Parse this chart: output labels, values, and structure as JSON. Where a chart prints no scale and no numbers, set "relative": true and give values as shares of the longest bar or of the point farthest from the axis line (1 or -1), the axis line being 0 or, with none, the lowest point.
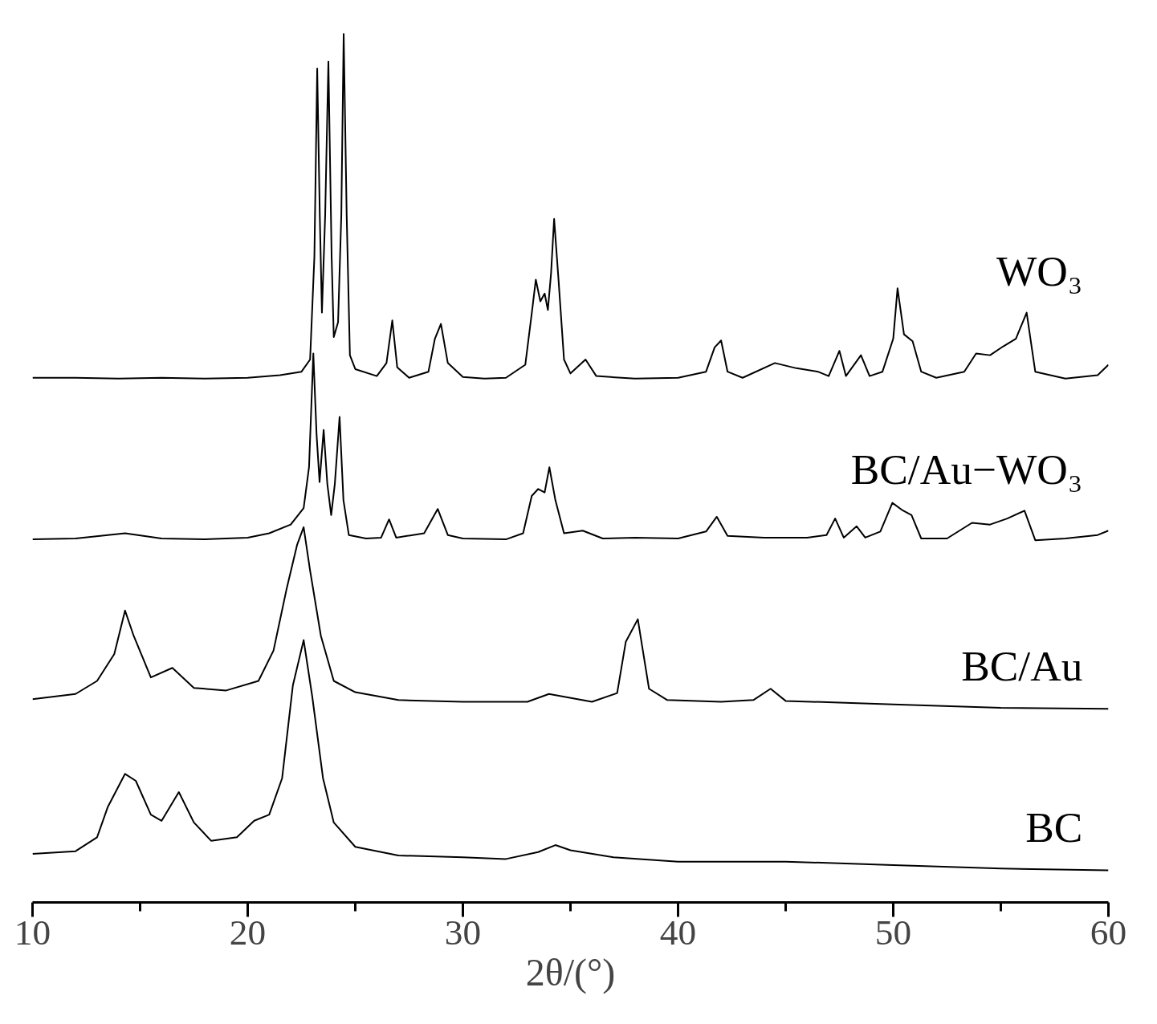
{
  "chart_data": {
    "type": "line",
    "relative": true,
    "xlabel": "2θ/(°)",
    "xlim": [
      10,
      60
    ],
    "xticks": [
      10,
      {
        "value": 15,
        "label": null
      },
      20,
      {
        "value": 25,
        "label": null
      },
      30,
      {
        "value": 35,
        "label": null
      },
      40,
      {
        "value": 45,
        "label": null
      },
      50,
      {
        "value": 55,
        "label": null
      },
      60
    ],
    "series": [
      {
        "name": "WO₃",
        "color": "#000000",
        "x": [
          10,
          12,
          14,
          16,
          18,
          20,
          21.5,
          22.5,
          22.9,
          23.1,
          23.23,
          23.35,
          23.45,
          23.6,
          23.75,
          23.9,
          24.0,
          24.2,
          24.35,
          24.46,
          24.6,
          24.75,
          25,
          26,
          26.45,
          26.72,
          26.95,
          27.5,
          28.4,
          28.7,
          28.98,
          29.3,
          30,
          31,
          32,
          32.9,
          33.2,
          33.39,
          33.6,
          33.8,
          33.95,
          34.1,
          34.24,
          34.45,
          34.7,
          35,
          35.7,
          36.2,
          38,
          40,
          41.3,
          41.7,
          42.0,
          42.3,
          43,
          44.5,
          45.5,
          46.5,
          47,
          47.5,
          47.8,
          48.5,
          48.9,
          49.5,
          50,
          50.2,
          50.5,
          50.9,
          51.3,
          52,
          53.3,
          53.85,
          54.5,
          55.1,
          55.7,
          56.2,
          56.6,
          58,
          59.5,
          60
        ],
        "values": [
          0.604,
          0.604,
          0.603,
          0.604,
          0.603,
          0.604,
          0.607,
          0.611,
          0.625,
          0.744,
          0.96,
          0.791,
          0.679,
          0.791,
          0.968,
          0.744,
          0.651,
          0.668,
          0.791,
          1,
          0.791,
          0.63,
          0.614,
          0.606,
          0.621,
          0.67,
          0.616,
          0.604,
          0.611,
          0.649,
          0.666,
          0.621,
          0.605,
          0.603,
          0.604,
          0.619,
          0.678,
          0.717,
          0.692,
          0.701,
          0.682,
          0.725,
          0.787,
          0.715,
          0.625,
          0.609,
          0.625,
          0.606,
          0.603,
          0.604,
          0.611,
          0.639,
          0.647,
          0.611,
          0.604,
          0.621,
          0.615,
          0.611,
          0.606,
          0.635,
          0.606,
          0.63,
          0.606,
          0.611,
          0.649,
          0.707,
          0.654,
          0.646,
          0.611,
          0.604,
          0.611,
          0.632,
          0.63,
          0.64,
          0.649,
          0.679,
          0.611,
          0.603,
          0.607,
          0.619
        ]
      },
      {
        "name": "BC/Au−WO₃",
        "color": "#000000",
        "x": [
          10,
          12,
          14.3,
          16,
          18,
          20,
          21,
          22,
          22.6,
          22.85,
          23.05,
          23.2,
          23.34,
          23.53,
          23.7,
          23.88,
          24.05,
          24.27,
          24.45,
          24.7,
          25.5,
          26.2,
          26.57,
          26.9,
          28.2,
          28.83,
          29.3,
          30,
          32,
          32.8,
          33.2,
          33.5,
          33.8,
          34.02,
          34.3,
          34.7,
          35.57,
          36.5,
          38,
          40,
          41.3,
          41.8,
          42.3,
          44,
          46,
          46.9,
          47.3,
          47.7,
          48.3,
          48.7,
          49.4,
          49.96,
          50.4,
          50.85,
          51.3,
          52.5,
          53.66,
          54.5,
          55.3,
          56.1,
          56.6,
          58,
          59.5,
          60
        ],
        "values": [
          0.418,
          0.419,
          0.425,
          0.419,
          0.418,
          0.42,
          0.425,
          0.435,
          0.454,
          0.501,
          0.632,
          0.539,
          0.484,
          0.544,
          0.482,
          0.446,
          0.482,
          0.559,
          0.463,
          0.423,
          0.419,
          0.42,
          0.441,
          0.42,
          0.425,
          0.453,
          0.423,
          0.419,
          0.418,
          0.425,
          0.468,
          0.476,
          0.472,
          0.501,
          0.463,
          0.425,
          0.428,
          0.419,
          0.42,
          0.419,
          0.427,
          0.444,
          0.422,
          0.42,
          0.42,
          0.423,
          0.442,
          0.42,
          0.433,
          0.42,
          0.427,
          0.46,
          0.452,
          0.446,
          0.419,
          0.419,
          0.437,
          0.435,
          0.442,
          0.451,
          0.417,
          0.419,
          0.423,
          0.428
        ]
      },
      {
        "name": "BC/Au",
        "color": "#000000",
        "x": [
          10,
          12,
          13,
          13.8,
          14.3,
          14.7,
          15.5,
          16.5,
          17.5,
          19,
          20.5,
          21.2,
          21.8,
          22.3,
          22.6,
          22.9,
          23.4,
          24,
          25,
          27,
          30,
          33,
          34,
          36,
          37.17,
          37.57,
          38.13,
          38.65,
          39.5,
          42,
          43.5,
          44.3,
          45,
          50,
          55,
          60
        ],
        "values": [
          0.234,
          0.24,
          0.255,
          0.286,
          0.336,
          0.307,
          0.259,
          0.27,
          0.247,
          0.244,
          0.255,
          0.29,
          0.36,
          0.412,
          0.432,
          0.382,
          0.307,
          0.255,
          0.242,
          0.233,
          0.231,
          0.231,
          0.24,
          0.231,
          0.241,
          0.3,
          0.326,
          0.246,
          0.233,
          0.231,
          0.233,
          0.246,
          0.232,
          0.228,
          0.224,
          0.223
        ]
      },
      {
        "name": "BC",
        "color": "#000000",
        "x": [
          10,
          12,
          13,
          13.5,
          14.3,
          14.8,
          15.5,
          16,
          16.8,
          17.5,
          18.3,
          19.5,
          20.3,
          21,
          21.6,
          22.1,
          22.6,
          23,
          23.5,
          24,
          25,
          27,
          30,
          32,
          33.5,
          34.3,
          35,
          37,
          40,
          45,
          50,
          55,
          60
        ],
        "values": [
          0.056,
          0.059,
          0.075,
          0.11,
          0.148,
          0.14,
          0.101,
          0.094,
          0.127,
          0.092,
          0.071,
          0.075,
          0.094,
          0.101,
          0.143,
          0.25,
          0.302,
          0.237,
          0.143,
          0.092,
          0.064,
          0.054,
          0.052,
          0.05,
          0.058,
          0.066,
          0.06,
          0.052,
          0.047,
          0.047,
          0.043,
          0.039,
          0.037
        ]
      }
    ]
  }
}
